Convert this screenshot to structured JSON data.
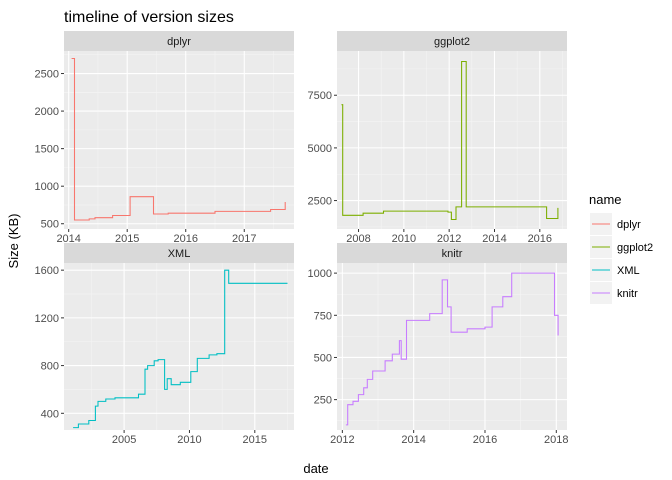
{
  "chart_data": {
    "type": "line",
    "step": true,
    "title": "timeline of version sizes",
    "xlabel": "date",
    "ylabel": "Size (KB)",
    "legend": {
      "title": "name",
      "position": "right",
      "entries": [
        {
          "name": "dplyr",
          "color": "#F8766D"
        },
        {
          "name": "ggplot2",
          "color": "#7CAE00"
        },
        {
          "name": "XML",
          "color": "#00BFC4"
        },
        {
          "name": "knitr",
          "color": "#C77CFF"
        }
      ]
    },
    "panels": [
      {
        "name": "dplyr",
        "color": "#F8766D",
        "xlim": [
          2013.92,
          2017.85
        ],
        "ylim": [
          430,
          2800
        ],
        "xticks": [
          2014,
          2015,
          2016,
          2017
        ],
        "yticks": [
          500,
          1000,
          1500,
          2000,
          2500
        ],
        "x": [
          2014.05,
          2014.1,
          2014.35,
          2014.45,
          2014.75,
          2015.05,
          2015.45,
          2015.7,
          2016.5,
          2017.45,
          2017.7
        ],
        "y": [
          2700,
          550,
          565,
          580,
          610,
          860,
          630,
          640,
          665,
          690,
          790
        ]
      },
      {
        "name": "ggplot2",
        "color": "#7CAE00",
        "xlim": [
          2007.05,
          2017.2
        ],
        "ylim": [
          1150,
          9600
        ],
        "xticks": [
          2008,
          2010,
          2012,
          2014,
          2016
        ],
        "yticks": [
          2500,
          5000,
          7500
        ],
        "x": [
          2007.25,
          2007.3,
          2008.2,
          2009.1,
          2011.95,
          2012.1,
          2012.3,
          2012.55,
          2012.75,
          2016.0,
          2016.3,
          2016.8
        ],
        "y": [
          7050,
          1800,
          1900,
          2000,
          1950,
          1600,
          2200,
          9100,
          2200,
          2200,
          1650,
          2150
        ]
      },
      {
        "name": "XML",
        "color": "#00BFC4",
        "xlim": [
          2000.4,
          2018.0
        ],
        "ylim": [
          260,
          1660
        ],
        "xticks": [
          2005,
          2010,
          2015
        ],
        "yticks": [
          400,
          800,
          1200,
          1600
        ],
        "x": [
          2001.1,
          2001.5,
          2002.3,
          2002.8,
          2003.0,
          2003.6,
          2004.3,
          2006.1,
          2006.6,
          2006.8,
          2007.3,
          2007.6,
          2008.1,
          2008.3,
          2008.6,
          2009.3,
          2010.1,
          2010.6,
          2011.5,
          2012.1,
          2012.7,
          2013.0,
          2017.5
        ],
        "y": [
          280,
          310,
          340,
          460,
          500,
          520,
          530,
          560,
          770,
          800,
          840,
          850,
          600,
          690,
          640,
          660,
          750,
          860,
          890,
          900,
          1600,
          1490,
          1490
        ]
      },
      {
        "name": "knitr",
        "color": "#C77CFF",
        "xlim": [
          2011.85,
          2018.3
        ],
        "ylim": [
          70,
          1060
        ],
        "xticks": [
          2012,
          2014,
          2016,
          2018
        ],
        "yticks": [
          250,
          500,
          750,
          1000
        ],
        "x": [
          2012.1,
          2012.15,
          2012.3,
          2012.45,
          2012.6,
          2012.7,
          2012.85,
          2013.2,
          2013.4,
          2013.6,
          2013.65,
          2013.8,
          2014.45,
          2014.8,
          2014.95,
          2015.05,
          2015.5,
          2016.0,
          2016.2,
          2016.5,
          2016.75,
          2017.3,
          2017.95,
          2018.05
        ],
        "y": [
          100,
          220,
          240,
          280,
          320,
          370,
          420,
          480,
          520,
          600,
          490,
          720,
          760,
          960,
          800,
          650,
          670,
          680,
          800,
          860,
          1000,
          1000,
          750,
          630
        ]
      }
    ]
  }
}
